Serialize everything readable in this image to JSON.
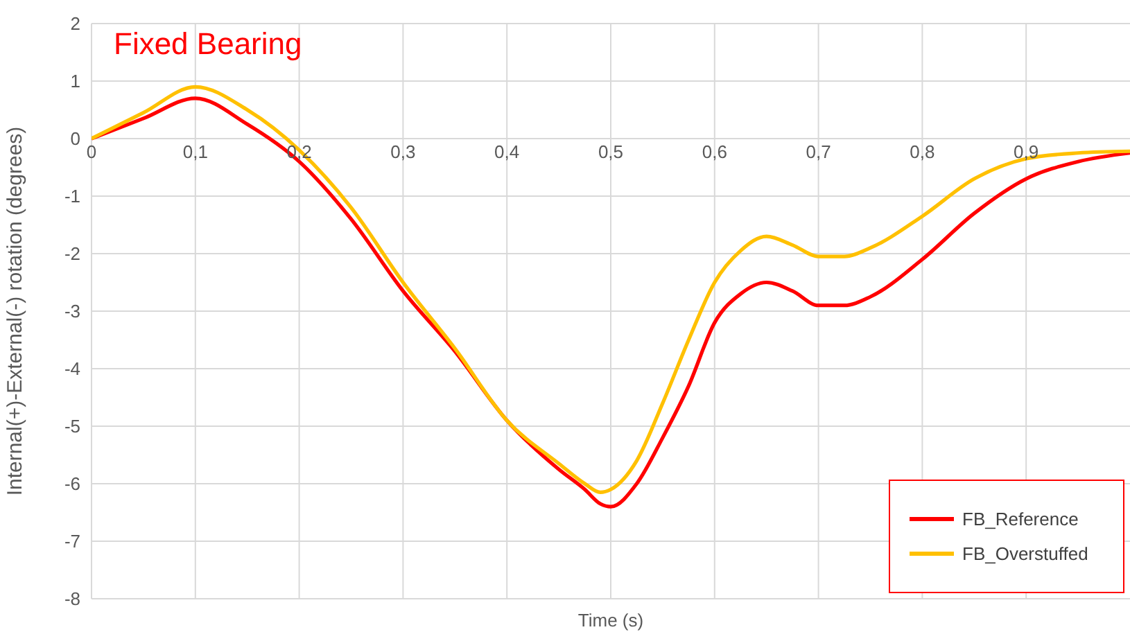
{
  "chart_data": {
    "type": "line",
    "title": "Fixed Bearing",
    "xlabel": "Time (s)",
    "ylabel": "Internal(+)-External(-) rotation (degrees)",
    "x": [
      0,
      0.05,
      0.1,
      0.15,
      0.2,
      0.25,
      0.3,
      0.35,
      0.4,
      0.45,
      0.475,
      0.49,
      0.5,
      0.525,
      0.55,
      0.575,
      0.6,
      0.625,
      0.65,
      0.675,
      0.7,
      0.725,
      0.75,
      0.8,
      0.85,
      0.9,
      0.95,
      1.0
    ],
    "series": [
      {
        "name": "FB_Reference",
        "color": "#ff0000",
        "values": [
          0,
          0.35,
          0.7,
          0.25,
          -0.4,
          -1.4,
          -2.65,
          -3.7,
          -4.9,
          -5.75,
          -6.1,
          -6.35,
          -6.4,
          -6.0,
          -5.2,
          -4.3,
          -3.2,
          -2.7,
          -2.5,
          -2.65,
          -2.9,
          -2.9,
          -2.75,
          -2.1,
          -1.3,
          -0.7,
          -0.4,
          -0.25
        ]
      },
      {
        "name": "FB_Overstuffed",
        "color": "#ffc000",
        "values": [
          0,
          0.45,
          0.9,
          0.5,
          -0.2,
          -1.2,
          -2.5,
          -3.65,
          -4.9,
          -5.65,
          -6.0,
          -6.15,
          -6.1,
          -5.6,
          -4.6,
          -3.5,
          -2.5,
          -1.95,
          -1.7,
          -1.85,
          -2.05,
          -2.05,
          -1.9,
          -1.35,
          -0.7,
          -0.35,
          -0.25,
          -0.22
        ]
      }
    ],
    "xlim": [
      0,
      1
    ],
    "xticks": [
      0,
      {
        "value": 0.1,
        "label": "0,1"
      },
      {
        "value": 0.2,
        "label": "0,2"
      },
      {
        "value": 0.3,
        "label": "0,3"
      },
      {
        "value": 0.4,
        "label": "0,4"
      },
      {
        "value": 0.5,
        "label": "0,5"
      },
      {
        "value": 0.6,
        "label": "0,6"
      },
      {
        "value": 0.7,
        "label": "0,7"
      },
      {
        "value": 0.8,
        "label": "0,8"
      },
      {
        "value": 0.9,
        "label": "0,9"
      }
    ],
    "ylim": [
      -8,
      2
    ],
    "yticks": [
      -8,
      -7,
      -6,
      -5,
      -4,
      -3,
      -2,
      -1,
      0,
      1,
      2
    ],
    "grid": true,
    "legend": "bottom right"
  }
}
